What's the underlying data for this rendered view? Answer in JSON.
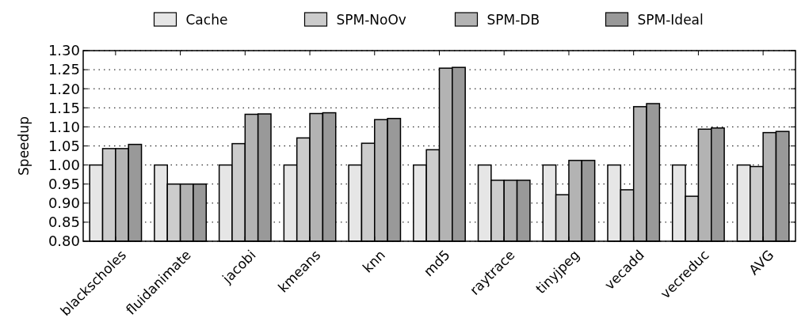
{
  "chart_data": {
    "type": "bar",
    "ylabel": "Speedup",
    "categories": [
      "blackscholes",
      "fluidanimate",
      "jacobi",
      "kmeans",
      "knn",
      "md5",
      "raytrace",
      "tinyjpeg",
      "vecadd",
      "vecreduc",
      "AVG"
    ],
    "series": [
      {
        "name": "Cache",
        "color": "#e6e6e6",
        "values": [
          1.0,
          1.0,
          1.0,
          1.0,
          1.0,
          1.0,
          1.0,
          1.0,
          1.0,
          1.0,
          1.0
        ]
      },
      {
        "name": "SPM-NoOv",
        "color": "#cccccc",
        "values": [
          1.043,
          0.95,
          1.056,
          1.071,
          1.057,
          1.04,
          0.96,
          0.922,
          0.935,
          0.918,
          0.996
        ]
      },
      {
        "name": "SPM-DB",
        "color": "#b3b3b3",
        "values": [
          1.043,
          0.95,
          1.133,
          1.135,
          1.119,
          1.254,
          0.96,
          1.012,
          1.153,
          1.094,
          1.085
        ]
      },
      {
        "name": "SPM-Ideal",
        "color": "#999999",
        "values": [
          1.054,
          0.95,
          1.134,
          1.137,
          1.122,
          1.256,
          0.96,
          1.012,
          1.161,
          1.097,
          1.088
        ]
      }
    ],
    "ylim": [
      0.8,
      1.3
    ],
    "yticks": [
      {
        "value": 0.8,
        "label": "0.80"
      },
      {
        "value": 0.85,
        "label": "0.85"
      },
      {
        "value": 0.9,
        "label": "0.90"
      },
      {
        "value": 0.95,
        "label": "0.95"
      },
      {
        "value": 1.0,
        "label": "1.00"
      },
      {
        "value": 1.05,
        "label": "1.05"
      },
      {
        "value": 1.1,
        "label": "1.10"
      },
      {
        "value": 1.15,
        "label": "1.15"
      },
      {
        "value": 1.2,
        "label": "1.20"
      },
      {
        "value": 1.25,
        "label": "1.25"
      },
      {
        "value": 1.3,
        "label": "1.30"
      }
    ],
    "grid": "y",
    "legend": "top"
  }
}
